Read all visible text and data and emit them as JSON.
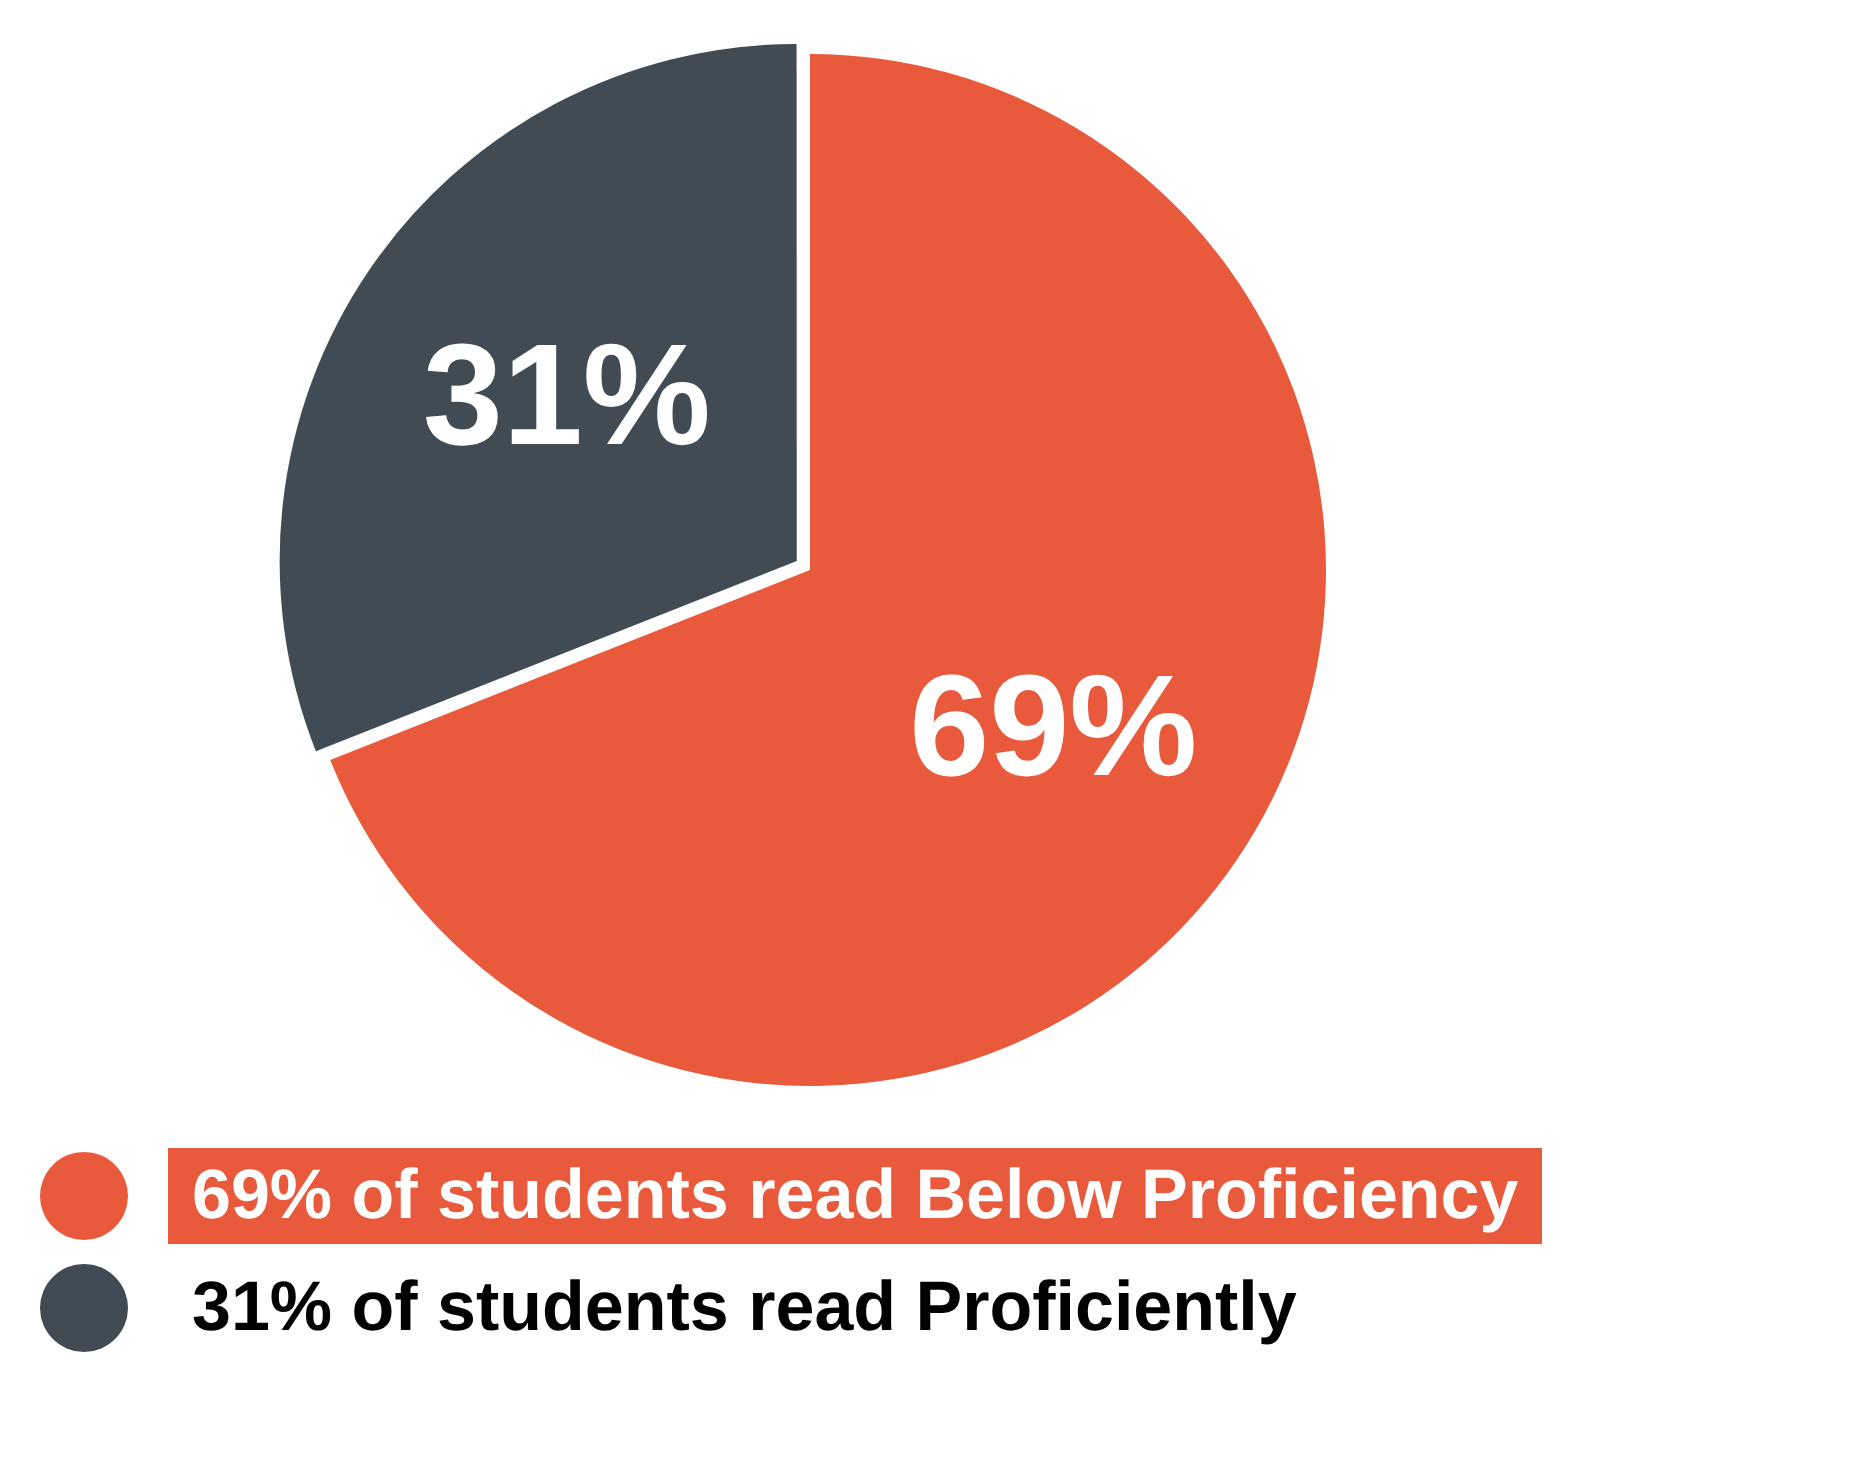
{
  "chart_data": {
    "type": "pie",
    "categories": [
      "69% of students read Below Proficiency",
      "31% of students read Proficiently"
    ],
    "values": [
      69,
      31
    ],
    "colors": [
      "#e85a3b",
      "#404b54"
    ],
    "value_labels": [
      "69%",
      "31%"
    ],
    "legend": "bottom"
  }
}
